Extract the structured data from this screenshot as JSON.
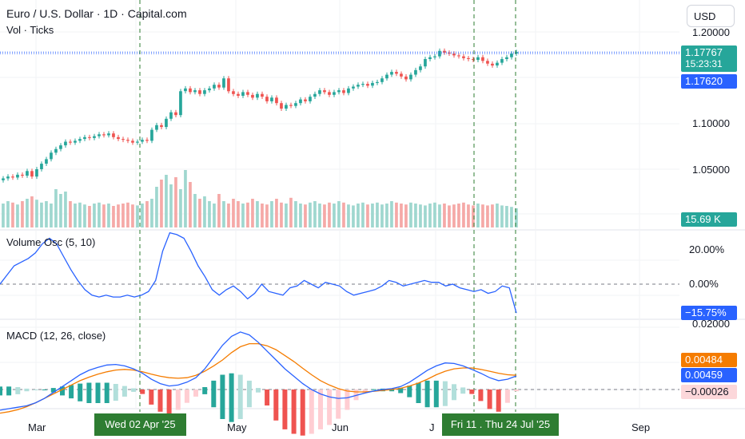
{
  "header": {
    "title": "Euro / U.S. Dollar · 1D · Capital.com",
    "sub": "Vol · Ticks",
    "currency": "USD"
  },
  "colors": {
    "up": "#26a69a",
    "down": "#ef5350",
    "macd": "#2962ff",
    "signal": "#f57c00",
    "crosshair": "#2e7d32",
    "priceline": "#2962ff"
  },
  "price_axis": {
    "ticks": [
      "1.20000",
      "1.10000",
      "1.05000"
    ],
    "current": {
      "price": "1.17767",
      "countdown": "15:23:31"
    },
    "crosshair_price": "1.17620",
    "volume": "15.69 K"
  },
  "vol_osc": {
    "title": "Volume Osc (5, 10)",
    "ticks": [
      "20.00%",
      "0.00%"
    ],
    "current": "−15.75%"
  },
  "macd": {
    "title": "MACD (12, 26, close)",
    "ticks": [
      "0.02000"
    ],
    "signal_value": "0.00484",
    "macd_value": "0.00459",
    "hist_value": "−0.00026"
  },
  "time_axis": {
    "labels": [
      "Mar",
      "May",
      "Jun",
      "Sep"
    ],
    "label_j": "J",
    "crosshair_a": "Wed 02 Apr '25",
    "crosshair_b": "Fri 11 .",
    "crosshair_c": "Thu 24 Jul '25"
  },
  "chart_data": {
    "type": "candlestick",
    "symbol": "EURUSD",
    "timeframe": "1D",
    "closes": [
      1.04,
      1.042,
      1.041,
      1.044,
      1.043,
      1.048,
      1.042,
      1.05,
      1.056,
      1.061,
      1.068,
      1.072,
      1.076,
      1.08,
      1.079,
      1.081,
      1.083,
      1.085,
      1.084,
      1.086,
      1.088,
      1.087,
      1.089,
      1.085,
      1.083,
      1.082,
      1.081,
      1.079,
      1.08,
      1.082,
      1.081,
      1.093,
      1.098,
      1.096,
      1.105,
      1.112,
      1.109,
      1.135,
      1.138,
      1.134,
      1.136,
      1.132,
      1.136,
      1.138,
      1.142,
      1.139,
      1.149,
      1.135,
      1.132,
      1.13,
      1.134,
      1.131,
      1.128,
      1.132,
      1.129,
      1.124,
      1.128,
      1.122,
      1.116,
      1.12,
      1.119,
      1.122,
      1.126,
      1.124,
      1.129,
      1.132,
      1.136,
      1.134,
      1.131,
      1.134,
      1.136,
      1.133,
      1.138,
      1.14,
      1.142,
      1.143,
      1.141,
      1.144,
      1.145,
      1.149,
      1.153,
      1.156,
      1.154,
      1.151,
      1.148,
      1.153,
      1.158,
      1.162,
      1.17,
      1.172,
      1.173,
      1.179,
      1.177,
      1.176,
      1.174,
      1.173,
      1.171,
      1.17,
      1.169,
      1.172,
      1.168,
      1.165,
      1.163,
      1.166,
      1.17,
      1.172,
      1.176,
      1.1777
    ],
    "volume": [
      0.5,
      0.55,
      0.52,
      0.48,
      0.55,
      0.6,
      0.65,
      0.58,
      0.52,
      0.55,
      0.5,
      0.8,
      0.7,
      0.75,
      0.55,
      0.5,
      0.52,
      0.48,
      0.45,
      0.5,
      0.52,
      0.48,
      0.5,
      0.45,
      0.48,
      0.5,
      0.52,
      0.48,
      0.46,
      0.5,
      0.55,
      0.6,
      0.85,
      1.0,
      1.1,
      0.9,
      1.05,
      0.8,
      1.2,
      0.95,
      0.7,
      0.6,
      0.65,
      0.55,
      0.5,
      0.7,
      0.55,
      0.5,
      0.6,
      0.55,
      0.5,
      0.52,
      0.6,
      0.55,
      0.5,
      0.48,
      0.55,
      0.6,
      0.52,
      0.5,
      0.62,
      0.55,
      0.5,
      0.48,
      0.52,
      0.55,
      0.5,
      0.48,
      0.52,
      0.5,
      0.55,
      0.52,
      0.48,
      0.46,
      0.5,
      0.52,
      0.48,
      0.5,
      0.52,
      0.48,
      0.5,
      0.55,
      0.52,
      0.5,
      0.48,
      0.52,
      0.5,
      0.48,
      0.46,
      0.5,
      0.52,
      0.48,
      0.5,
      0.46,
      0.48,
      0.5,
      0.52,
      0.48,
      0.46,
      0.5,
      0.48,
      0.46,
      0.48,
      0.5,
      0.46,
      0.45,
      0.43,
      0.4
    ],
    "volume_last": "15.69 K",
    "volume_oscillator_pct": [
      0,
      5,
      10,
      12,
      14,
      17,
      22,
      25,
      22,
      15,
      8,
      2,
      -3,
      -6,
      -7,
      -6,
      -7,
      -7,
      -6,
      -7,
      -6,
      -4,
      2,
      18,
      28,
      27,
      25,
      18,
      10,
      4,
      -3,
      -6,
      -3,
      -1,
      -4,
      -8,
      -5,
      0,
      -4,
      -5,
      -6,
      -2,
      -1,
      2,
      0,
      -2,
      1,
      0,
      -1,
      -4,
      -6,
      -5,
      -4,
      -3,
      -1,
      2,
      1,
      -1,
      0,
      1,
      2,
      1,
      1,
      -1,
      0,
      -2,
      -3,
      -4,
      -3,
      -5,
      -4,
      -1,
      -2,
      -15.75
    ],
    "volume_oscillator_last_pct": -15.75,
    "macd_line": [
      -0.007,
      -0.0065,
      -0.006,
      -0.0055,
      -0.0045,
      -0.003,
      -0.001,
      0.001,
      0.003,
      0.005,
      0.0065,
      0.0075,
      0.0083,
      0.0085,
      0.008,
      0.007,
      0.0055,
      0.0035,
      0.002,
      0.0012,
      0.0015,
      0.0025,
      0.004,
      0.007,
      0.011,
      0.015,
      0.018,
      0.0195,
      0.0185,
      0.016,
      0.013,
      0.01,
      0.007,
      0.0045,
      0.002,
      0.0,
      -0.0015,
      -0.0025,
      -0.003,
      -0.0028,
      -0.002,
      -0.0012,
      -0.0005,
      0.0,
      0.0003,
      0.001,
      0.0025,
      0.0045,
      0.0065,
      0.008,
      0.009,
      0.0088,
      0.008,
      0.0068,
      0.0055,
      0.004,
      0.003,
      0.0035,
      0.0046
    ],
    "signal_line": [
      -0.008,
      -0.0075,
      -0.0068,
      -0.0058,
      -0.0045,
      -0.003,
      -0.0015,
      0.0,
      0.0015,
      0.003,
      0.0042,
      0.0052,
      0.006,
      0.0066,
      0.0068,
      0.0066,
      0.006,
      0.0052,
      0.0045,
      0.004,
      0.0038,
      0.004,
      0.0048,
      0.0062,
      0.008,
      0.01,
      0.0125,
      0.0145,
      0.0155,
      0.0155,
      0.0148,
      0.0135,
      0.0115,
      0.0095,
      0.0072,
      0.005,
      0.003,
      0.0015,
      0.0003,
      -0.0005,
      -0.0008,
      -0.0008,
      -0.0006,
      -0.0003,
      0.0,
      0.0004,
      0.0012,
      0.0022,
      0.0035,
      0.005,
      0.0062,
      0.007,
      0.0073,
      0.0073,
      0.0068,
      0.0062,
      0.0055,
      0.005,
      0.0048
    ],
    "macd_last": 0.00459,
    "signal_last": 0.00484,
    "histogram_last": -0.00026,
    "price_ticks": [
      1.05,
      1.1,
      1.2
    ],
    "last_price": 1.17767,
    "crosshair_price": 1.1762
  }
}
